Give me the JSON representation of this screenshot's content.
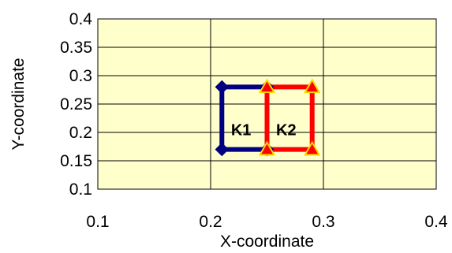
{
  "chart_data": {
    "type": "line",
    "title": "",
    "xlabel": "X-coordinate",
    "ylabel": "Y-coordinate",
    "xlim": [
      0.1,
      0.4
    ],
    "ylim": [
      0.1,
      0.4
    ],
    "x_ticks": [
      "0.1",
      "0.2",
      "0.3",
      "0.4"
    ],
    "y_ticks": [
      "0.1",
      "0.15",
      "0.2",
      "0.25",
      "0.3",
      "0.35",
      "0.4"
    ],
    "x_tick_values": [
      0.1,
      0.2,
      0.3,
      0.4
    ],
    "y_tick_values": [
      0.1,
      0.15,
      0.2,
      0.25,
      0.3,
      0.35,
      0.4
    ],
    "grid": true,
    "plot_background": "#ffffcc",
    "series": [
      {
        "label": "K1",
        "color": "#000080",
        "marker": "diamond",
        "marker_color": "#000080",
        "points": [
          [
            0.25,
            0.28
          ],
          [
            0.21,
            0.28
          ],
          [
            0.21,
            0.17
          ],
          [
            0.25,
            0.17
          ]
        ],
        "label_at": [
          0.227,
          0.205
        ]
      },
      {
        "label": "K2",
        "color": "#ff0000",
        "marker": "triangle",
        "marker_color": "#ff0000",
        "marker_edge": "#ffd700",
        "points": [
          [
            0.25,
            0.28
          ],
          [
            0.29,
            0.28
          ],
          [
            0.29,
            0.17
          ],
          [
            0.25,
            0.17
          ],
          [
            0.25,
            0.28
          ]
        ],
        "label_at": [
          0.267,
          0.205
        ]
      }
    ]
  }
}
